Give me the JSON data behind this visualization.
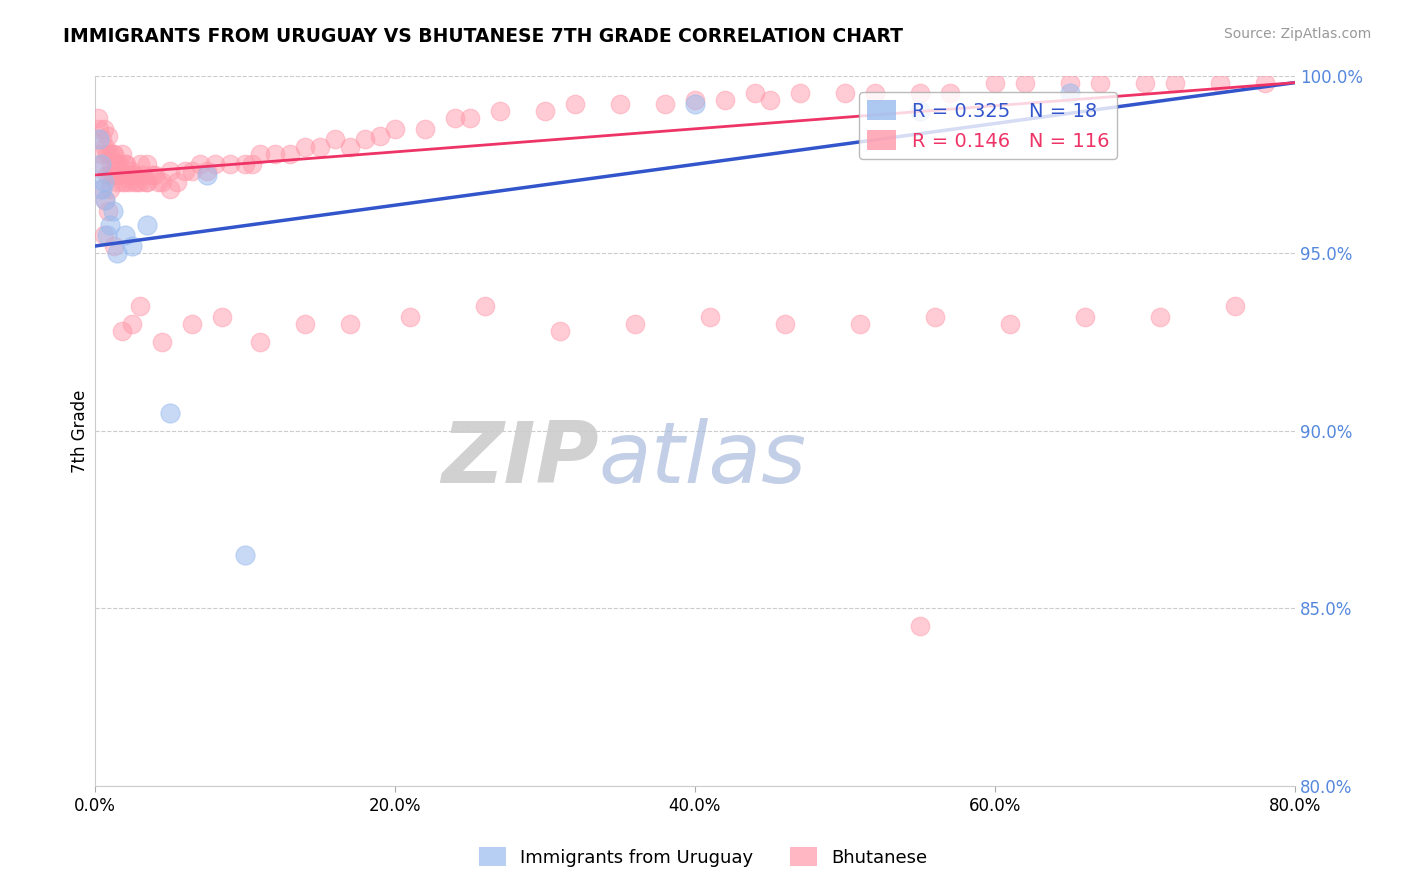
{
  "title": "IMMIGRANTS FROM URUGUAY VS BHUTANESE 7TH GRADE CORRELATION CHART",
  "source": "Source: ZipAtlas.com",
  "ylabel": "7th Grade",
  "xlim": [
    0.0,
    80.0
  ],
  "ylim": [
    80.0,
    100.0
  ],
  "xticks": [
    0.0,
    20.0,
    40.0,
    60.0,
    80.0
  ],
  "yticks": [
    80.0,
    85.0,
    90.0,
    95.0,
    100.0
  ],
  "xticklabels": [
    "0.0%",
    "20.0%",
    "40.0%",
    "60.0%",
    "80.0%"
  ],
  "yticklabels": [
    "80.0%",
    "85.0%",
    "90.0%",
    "95.0%",
    "100.0%"
  ],
  "blue_R": 0.325,
  "blue_N": 18,
  "pink_R": 0.146,
  "pink_N": 116,
  "blue_color": "#99BBEE",
  "pink_color": "#FF99AA",
  "blue_line_color": "#3355CC",
  "pink_line_color": "#EE3366",
  "legend_label_blue": "Immigrants from Uruguay",
  "legend_label_pink": "Bhutanese",
  "watermark_zip": "ZIP",
  "watermark_atlas": "atlas",
  "blue_scatter_x": [
    0.3,
    0.4,
    0.5,
    0.6,
    0.7,
    0.8,
    1.0,
    1.2,
    1.5,
    2.0,
    2.5,
    3.5,
    5.0,
    7.5,
    40.0,
    55.0,
    65.0,
    10.0
  ],
  "blue_scatter_y": [
    98.2,
    97.5,
    96.8,
    97.0,
    96.5,
    95.5,
    95.8,
    96.2,
    95.0,
    95.5,
    95.2,
    95.8,
    90.5,
    97.2,
    99.2,
    99.0,
    99.5,
    86.5
  ],
  "pink_scatter_x": [
    0.2,
    0.3,
    0.4,
    0.5,
    0.5,
    0.6,
    0.7,
    0.8,
    0.8,
    0.9,
    1.0,
    1.0,
    1.0,
    1.1,
    1.2,
    1.2,
    1.3,
    1.4,
    1.5,
    1.5,
    1.6,
    1.7,
    1.8,
    1.8,
    2.0,
    2.0,
    2.1,
    2.2,
    2.3,
    2.4,
    2.5,
    2.6,
    2.7,
    2.8,
    3.0,
    3.0,
    3.2,
    3.4,
    3.5,
    3.5,
    3.8,
    4.0,
    4.2,
    4.5,
    5.0,
    5.0,
    5.5,
    6.0,
    6.5,
    7.0,
    7.5,
    8.0,
    9.0,
    10.0,
    10.5,
    11.0,
    12.0,
    13.0,
    14.0,
    15.0,
    16.0,
    17.0,
    18.0,
    19.0,
    20.0,
    22.0,
    24.0,
    25.0,
    27.0,
    30.0,
    32.0,
    35.0,
    38.0,
    40.0,
    42.0,
    44.0,
    45.0,
    47.0,
    50.0,
    52.0,
    55.0,
    57.0,
    60.0,
    62.0,
    65.0,
    67.0,
    70.0,
    72.0,
    75.0,
    78.0,
    0.6,
    1.3,
    0.9,
    2.5,
    1.8,
    3.0,
    4.5,
    6.5,
    8.5,
    11.0,
    14.0,
    17.0,
    21.0,
    26.0,
    31.0,
    36.0,
    41.0,
    46.0,
    51.0,
    56.0,
    61.0,
    66.0,
    71.0,
    76.0,
    0.4,
    0.7,
    55.0
  ],
  "pink_scatter_y": [
    98.8,
    98.5,
    97.8,
    98.2,
    97.5,
    98.5,
    98.0,
    97.8,
    97.2,
    98.3,
    97.8,
    97.2,
    96.8,
    97.5,
    97.8,
    97.2,
    97.8,
    97.5,
    97.5,
    97.0,
    97.5,
    97.2,
    97.8,
    97.0,
    97.5,
    97.0,
    97.5,
    97.2,
    97.0,
    97.3,
    97.2,
    97.0,
    97.2,
    97.0,
    97.5,
    97.0,
    97.2,
    97.0,
    97.5,
    97.0,
    97.2,
    97.2,
    97.0,
    97.0,
    97.3,
    96.8,
    97.0,
    97.3,
    97.3,
    97.5,
    97.3,
    97.5,
    97.5,
    97.5,
    97.5,
    97.8,
    97.8,
    97.8,
    98.0,
    98.0,
    98.2,
    98.0,
    98.2,
    98.3,
    98.5,
    98.5,
    98.8,
    98.8,
    99.0,
    99.0,
    99.2,
    99.2,
    99.2,
    99.3,
    99.3,
    99.5,
    99.3,
    99.5,
    99.5,
    99.5,
    99.5,
    99.5,
    99.8,
    99.8,
    99.8,
    99.8,
    99.8,
    99.8,
    99.8,
    99.8,
    95.5,
    95.2,
    96.2,
    93.0,
    92.8,
    93.5,
    92.5,
    93.0,
    93.2,
    92.5,
    93.0,
    93.0,
    93.2,
    93.5,
    92.8,
    93.0,
    93.2,
    93.0,
    93.0,
    93.2,
    93.0,
    93.2,
    93.2,
    93.5,
    96.8,
    96.5,
    84.5
  ],
  "blue_line_x0": 0.0,
  "blue_line_y0": 95.2,
  "blue_line_x1": 80.0,
  "blue_line_y1": 99.8,
  "pink_line_x0": 0.0,
  "pink_line_y0": 97.2,
  "pink_line_x1": 80.0,
  "pink_line_y1": 99.8
}
